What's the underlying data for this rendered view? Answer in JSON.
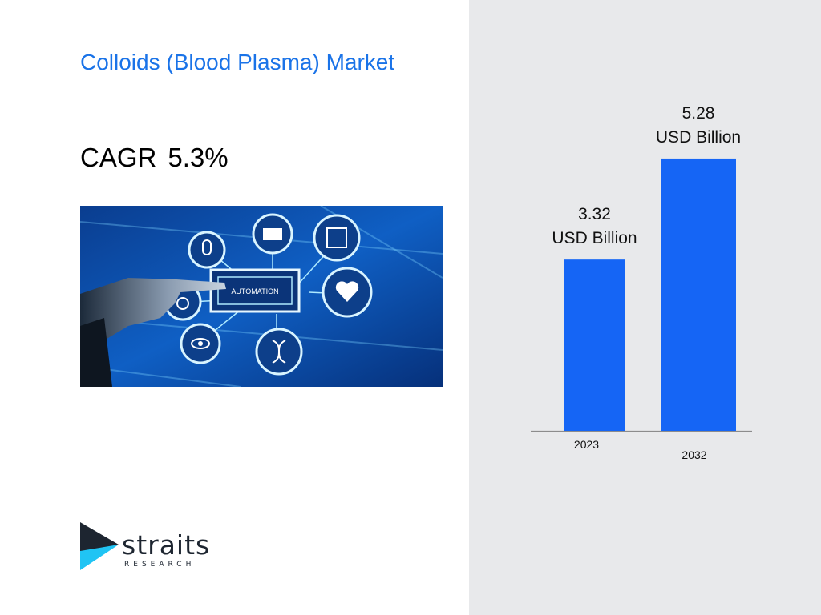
{
  "slide": {
    "title": "Colloids (Blood Plasma) Market",
    "cagr_label": "CAGR",
    "cagr_value": "5.3%"
  },
  "hero_image": {
    "label": "AUTOMATION",
    "icons": [
      "microphone-icon",
      "folder-icon",
      "chip-icon",
      "wifi-gear-icon",
      "heart-icon",
      "eye-gear-icon",
      "dna-icon"
    ]
  },
  "brand": {
    "name": "straits",
    "sub": "RESEARCH"
  },
  "colors": {
    "title": "#1a73e8",
    "bar": "#1565f5",
    "panel": "#e8e9eb",
    "logo_cyan": "#20c4f4",
    "logo_dark": "#1d2530"
  },
  "chart_data": {
    "type": "bar",
    "categories": [
      "2023",
      "2032"
    ],
    "values": [
      3.32,
      5.28
    ],
    "value_labels": [
      "3.32",
      "5.28"
    ],
    "unit_label": "USD Billion",
    "title": "",
    "xlabel": "",
    "ylabel": "",
    "ylim": [
      0,
      5.9
    ]
  }
}
